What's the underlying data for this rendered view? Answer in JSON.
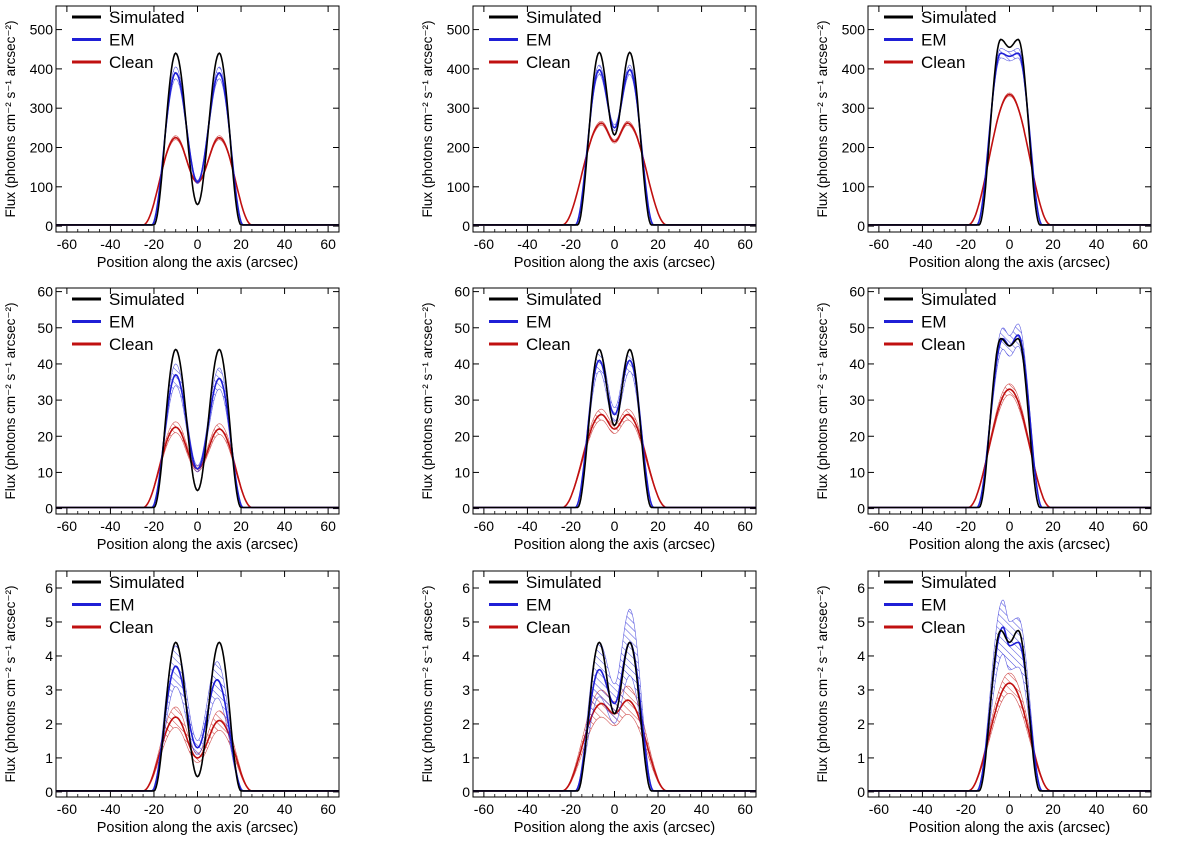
{
  "figure": {
    "ylabel": "Flux (photons cm⁻² s⁻¹ arcsec⁻²)",
    "xlabel": "Position along the axis (arcsec)",
    "legend": [
      "Simulated",
      "EM",
      "Clean"
    ],
    "colors": {
      "simulated": "#000000",
      "em": "#1f1fd6",
      "clean": "#c01010"
    }
  },
  "chart_data": [
    {
      "type": "line",
      "row": 1,
      "col": 1,
      "title": "",
      "xlabel": "Position along the axis (arcsec)",
      "ylabel": "Flux (photons cm⁻² s⁻¹ arcsec⁻²)",
      "xlim": [
        -65,
        65
      ],
      "ylim": [
        -15,
        560
      ],
      "xticks": [
        -60,
        -40,
        -20,
        0,
        20,
        40,
        60
      ],
      "yticks": [
        0,
        100,
        200,
        300,
        400,
        500
      ],
      "series": [
        {
          "name": "Simulated",
          "peaks": [
            [
              -10,
              440
            ],
            [
              10,
              440
            ]
          ],
          "valley": [
            0,
            55
          ],
          "edge": [
            20,
            3
          ],
          "band": 0
        },
        {
          "name": "EM",
          "peaks": [
            [
              -10,
              390
            ],
            [
              10,
              390
            ]
          ],
          "valley": [
            0,
            112
          ],
          "edge": [
            21,
            3
          ],
          "band": 15
        },
        {
          "name": "Clean",
          "peaks": [
            [
              -10,
              225
            ],
            [
              10,
              225
            ]
          ],
          "valley": [
            0,
            112
          ],
          "edge": [
            25,
            3
          ],
          "band": 5
        }
      ]
    },
    {
      "type": "line",
      "row": 1,
      "col": 2,
      "title": "",
      "xlabel": "Position along the axis (arcsec)",
      "ylabel": "Flux (photons cm⁻² s⁻¹ arcsec⁻²)",
      "xlim": [
        -65,
        65
      ],
      "ylim": [
        -15,
        560
      ],
      "xticks": [
        -60,
        -40,
        -20,
        0,
        20,
        40,
        60
      ],
      "yticks": [
        0,
        100,
        200,
        300,
        400,
        500
      ],
      "series": [
        {
          "name": "Simulated",
          "peaks": [
            [
              -7,
              442
            ],
            [
              7,
              442
            ]
          ],
          "valley": [
            0,
            232
          ],
          "edge": [
            17,
            3
          ],
          "band": 0
        },
        {
          "name": "EM",
          "peaks": [
            [
              -7,
              398
            ],
            [
              7,
              398
            ]
          ],
          "valley": [
            0,
            250
          ],
          "edge": [
            18,
            3
          ],
          "band": 12
        },
        {
          "name": "Clean",
          "peaks": [
            [
              -6,
              262
            ],
            [
              6,
              262
            ]
          ],
          "valley": [
            0,
            215
          ],
          "edge": [
            24,
            3
          ],
          "band": 5
        }
      ]
    },
    {
      "type": "line",
      "row": 1,
      "col": 3,
      "title": "",
      "xlabel": "Position along the axis (arcsec)",
      "ylabel": "Flux (photons cm⁻² s⁻¹ arcsec⁻²)",
      "xlim": [
        -65,
        65
      ],
      "ylim": [
        -15,
        560
      ],
      "xticks": [
        -60,
        -40,
        -20,
        0,
        20,
        40,
        60
      ],
      "yticks": [
        0,
        100,
        200,
        300,
        400,
        500
      ],
      "series": [
        {
          "name": "Simulated",
          "peaks": [
            [
              -4,
              475
            ],
            [
              4,
              475
            ]
          ],
          "valley": [
            0,
            455
          ],
          "edge": [
            14,
            3
          ],
          "band": 0
        },
        {
          "name": "EM",
          "peaks": [
            [
              -4,
              440
            ],
            [
              4,
              440
            ]
          ],
          "valley": [
            0,
            432
          ],
          "edge": [
            15,
            3
          ],
          "band": 12
        },
        {
          "name": "Clean",
          "peaks": [
            [
              0,
              335
            ]
          ],
          "valley": [
            0,
            335
          ],
          "edge": [
            19,
            3
          ],
          "band": 4
        }
      ]
    },
    {
      "type": "line",
      "row": 2,
      "col": 1,
      "title": "",
      "xlabel": "Position along the axis (arcsec)",
      "ylabel": "Flux (photons cm⁻² s⁻¹ arcsec⁻²)",
      "xlim": [
        -65,
        65
      ],
      "ylim": [
        -1.5,
        61
      ],
      "xticks": [
        -60,
        -40,
        -20,
        0,
        20,
        40,
        60
      ],
      "yticks": [
        0,
        10,
        20,
        30,
        40,
        50,
        60
      ],
      "series": [
        {
          "name": "Simulated",
          "peaks": [
            [
              -10,
              44
            ],
            [
              10,
              44
            ]
          ],
          "valley": [
            0,
            5
          ],
          "edge": [
            20,
            0.3
          ],
          "band": 0
        },
        {
          "name": "EM",
          "peaks": [
            [
              -10,
              37
            ],
            [
              10,
              36
            ]
          ],
          "valley": [
            0,
            11
          ],
          "edge": [
            21,
            0.3
          ],
          "band": 3
        },
        {
          "name": "Clean",
          "peaks": [
            [
              -10,
              22.5
            ],
            [
              10,
              22
            ]
          ],
          "valley": [
            0,
            11
          ],
          "edge": [
            25,
            0.3
          ],
          "band": 1.5
        }
      ]
    },
    {
      "type": "line",
      "row": 2,
      "col": 2,
      "title": "",
      "xlabel": "Position along the axis (arcsec)",
      "ylabel": "Flux (photons cm⁻² s⁻¹ arcsec⁻²)",
      "xlim": [
        -65,
        65
      ],
      "ylim": [
        -1.5,
        61
      ],
      "xticks": [
        -60,
        -40,
        -20,
        0,
        20,
        40,
        60
      ],
      "yticks": [
        0,
        10,
        20,
        30,
        40,
        50,
        60
      ],
      "series": [
        {
          "name": "Simulated",
          "peaks": [
            [
              -7,
              44
            ],
            [
              7,
              44
            ]
          ],
          "valley": [
            0,
            23
          ],
          "edge": [
            17,
            0.3
          ],
          "band": 0
        },
        {
          "name": "EM",
          "peaks": [
            [
              -7,
              41
            ],
            [
              7,
              41
            ]
          ],
          "valley": [
            0,
            26
          ],
          "edge": [
            18,
            0.3
          ],
          "band": 3
        },
        {
          "name": "Clean",
          "peaks": [
            [
              -6,
              26
            ],
            [
              6,
              26
            ]
          ],
          "valley": [
            0,
            22
          ],
          "edge": [
            24,
            0.3
          ],
          "band": 1.5
        }
      ]
    },
    {
      "type": "line",
      "row": 2,
      "col": 3,
      "title": "",
      "xlabel": "Position along the axis (arcsec)",
      "ylabel": "Flux (photons cm⁻² s⁻¹ arcsec⁻²)",
      "xlim": [
        -65,
        65
      ],
      "ylim": [
        -1.5,
        61
      ],
      "xticks": [
        -60,
        -40,
        -20,
        0,
        20,
        40,
        60
      ],
      "yticks": [
        0,
        10,
        20,
        30,
        40,
        50,
        60
      ],
      "series": [
        {
          "name": "Simulated",
          "peaks": [
            [
              -4,
              47
            ],
            [
              4,
              47
            ]
          ],
          "valley": [
            0,
            45
          ],
          "edge": [
            14,
            0.3
          ],
          "band": 0
        },
        {
          "name": "EM",
          "peaks": [
            [
              -3,
              47
            ],
            [
              4,
              48
            ]
          ],
          "valley": [
            0,
            45
          ],
          "edge": [
            15,
            0.3
          ],
          "band": 3
        },
        {
          "name": "Clean",
          "peaks": [
            [
              0,
              33
            ]
          ],
          "valley": [
            0,
            33
          ],
          "edge": [
            19,
            0.3
          ],
          "band": 1.5
        }
      ]
    },
    {
      "type": "line",
      "row": 3,
      "col": 1,
      "title": "",
      "xlabel": "Position along the axis (arcsec)",
      "ylabel": "Flux (photons cm⁻² s⁻¹ arcsec⁻²)",
      "xlim": [
        -65,
        65
      ],
      "ylim": [
        -0.15,
        6.5
      ],
      "xticks": [
        -60,
        -40,
        -20,
        0,
        20,
        40,
        60
      ],
      "yticks": [
        0,
        1,
        2,
        3,
        4,
        5,
        6
      ],
      "series": [
        {
          "name": "Simulated",
          "peaks": [
            [
              -10,
              4.4
            ],
            [
              10,
              4.4
            ]
          ],
          "valley": [
            0,
            0.45
          ],
          "edge": [
            20,
            0.03
          ],
          "band": 0
        },
        {
          "name": "EM",
          "peaks": [
            [
              -10,
              3.7
            ],
            [
              9,
              3.3
            ]
          ],
          "valley": [
            0,
            1.3
          ],
          "edge": [
            21,
            0.03
          ],
          "band": 0.6
        },
        {
          "name": "Clean",
          "peaks": [
            [
              -10,
              2.2
            ],
            [
              10,
              2.1
            ]
          ],
          "valley": [
            0,
            1.0
          ],
          "edge": [
            25,
            0.03
          ],
          "band": 0.3
        }
      ]
    },
    {
      "type": "line",
      "row": 3,
      "col": 2,
      "title": "",
      "xlabel": "Position along the axis (arcsec)",
      "ylabel": "Flux (photons cm⁻² s⁻¹ arcsec⁻²)",
      "xlim": [
        -65,
        65
      ],
      "ylim": [
        -0.15,
        6.5
      ],
      "xticks": [
        -60,
        -40,
        -20,
        0,
        20,
        40,
        60
      ],
      "yticks": [
        0,
        1,
        2,
        3,
        4,
        5,
        6
      ],
      "series": [
        {
          "name": "Simulated",
          "peaks": [
            [
              -7,
              4.4
            ],
            [
              7,
              4.4
            ]
          ],
          "valley": [
            0,
            2.3
          ],
          "edge": [
            17,
            0.03
          ],
          "band": 0
        },
        {
          "name": "EM",
          "peaks": [
            [
              -7,
              3.6
            ],
            [
              7,
              4.4
            ]
          ],
          "valley": [
            0,
            2.6
          ],
          "edge": [
            18,
            0.03
          ],
          "band": 0.8
        },
        {
          "name": "Clean",
          "peaks": [
            [
              -6,
              2.6
            ],
            [
              6,
              2.7
            ]
          ],
          "valley": [
            0,
            2.3
          ],
          "edge": [
            24,
            0.03
          ],
          "band": 0.4
        }
      ]
    },
    {
      "type": "line",
      "row": 3,
      "col": 3,
      "title": "",
      "xlabel": "Position along the axis (arcsec)",
      "ylabel": "Flux (photons cm⁻² s⁻¹ arcsec⁻²)",
      "xlim": [
        -65,
        65
      ],
      "ylim": [
        -0.15,
        6.5
      ],
      "xticks": [
        -60,
        -40,
        -20,
        0,
        20,
        40,
        60
      ],
      "yticks": [
        0,
        1,
        2,
        3,
        4,
        5,
        6
      ],
      "series": [
        {
          "name": "Simulated",
          "peaks": [
            [
              -4,
              4.75
            ],
            [
              4,
              4.75
            ]
          ],
          "valley": [
            0,
            4.4
          ],
          "edge": [
            14,
            0.03
          ],
          "band": 0
        },
        {
          "name": "EM",
          "peaks": [
            [
              -3,
              4.85
            ],
            [
              4,
              4.4
            ]
          ],
          "valley": [
            0,
            4.3
          ],
          "edge": [
            15,
            0.03
          ],
          "band": 0.8
        },
        {
          "name": "Clean",
          "peaks": [
            [
              0,
              3.2
            ]
          ],
          "valley": [
            0,
            3.2
          ],
          "edge": [
            19,
            0.03
          ],
          "band": 0.3
        }
      ]
    }
  ]
}
